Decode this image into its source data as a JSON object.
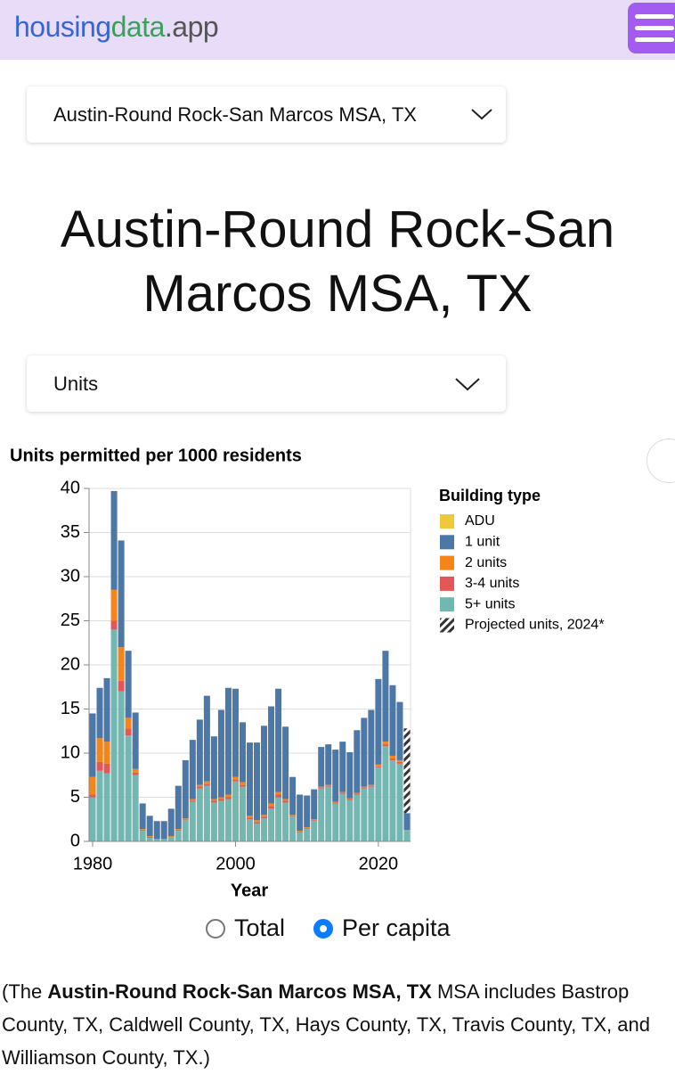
{
  "header": {
    "brand": [
      "housing",
      "data",
      ".app"
    ]
  },
  "location_select": "Austin-Round Rock-San Marcos MSA, TX",
  "heading": "Austin-Round Rock-San Marcos MSA, TX",
  "metric_select": "Units",
  "chart_data": {
    "type": "bar",
    "stacked": true,
    "title": "Units permitted per 1000 residents",
    "x_label": "Year",
    "legend_title": "Building type",
    "x": [
      1980,
      1981,
      1982,
      1983,
      1984,
      1985,
      1986,
      1987,
      1988,
      1989,
      1990,
      1991,
      1992,
      1993,
      1994,
      1995,
      1996,
      1997,
      1998,
      1999,
      2000,
      2001,
      2002,
      2003,
      2004,
      2005,
      2006,
      2007,
      2008,
      2009,
      2010,
      2011,
      2012,
      2013,
      2014,
      2015,
      2016,
      2017,
      2018,
      2019,
      2020,
      2021,
      2022,
      2023,
      2024
    ],
    "xlim": [
      1979.5,
      2024.5
    ],
    "xticks": [
      1980,
      2000,
      2020
    ],
    "ylim": [
      0,
      40
    ],
    "yticks": [
      0,
      5,
      10,
      15,
      20,
      25,
      30,
      35,
      40
    ],
    "grid": true,
    "series": [
      {
        "name": "ADU",
        "color": "#eeca3b",
        "values": [
          0,
          0,
          0,
          0,
          0,
          0,
          0,
          0,
          0,
          0,
          0,
          0,
          0,
          0,
          0,
          0,
          0,
          0,
          0,
          0,
          0,
          0,
          0,
          0,
          0,
          0,
          0,
          0,
          0,
          0,
          0,
          0,
          0,
          0,
          0,
          0,
          0,
          0,
          0,
          0,
          0,
          0,
          0,
          0,
          0
        ]
      },
      {
        "name": "1 unit",
        "color": "#4c78a8",
        "values": [
          7.2,
          5.7,
          7.2,
          11.2,
          12.1,
          7.6,
          6.4,
          2.9,
          2.3,
          2.0,
          2.0,
          3.1,
          4.9,
          6.6,
          6.7,
          7.4,
          9.7,
          7.1,
          9.9,
          12.1,
          10.0,
          6.8,
          8.3,
          8.8,
          10.1,
          11.0,
          11.7,
          8.2,
          4.3,
          4.1,
          3.6,
          3.4,
          4.5,
          4.6,
          5.9,
          5.7,
          5.2,
          7.1,
          7.8,
          8.5,
          9.7,
          10.3,
          8.0,
          6.6,
          1.9
        ]
      },
      {
        "name": "2 units",
        "color": "#f58518",
        "values": [
          2.0,
          2.7,
          2.5,
          3.5,
          3.8,
          1.2,
          0.4,
          0.1,
          0.1,
          0.1,
          0.1,
          0.1,
          0.1,
          0.1,
          0.2,
          0.2,
          0.3,
          0.2,
          0.2,
          0.3,
          0.3,
          0.3,
          0.2,
          0.2,
          0.2,
          0.3,
          0.3,
          0.2,
          0.1,
          0.1,
          0.1,
          0.1,
          0.1,
          0.1,
          0.1,
          0.1,
          0.1,
          0.1,
          0.1,
          0.1,
          0.2,
          0.3,
          0.3,
          0.2,
          0.05
        ]
      },
      {
        "name": "3-4 units",
        "color": "#e45756",
        "values": [
          0.3,
          1.0,
          1.1,
          1.0,
          1.2,
          0.8,
          0.3,
          0.1,
          0.1,
          0,
          0,
          0,
          0.1,
          0.1,
          0.1,
          0.2,
          0.2,
          0.2,
          0.2,
          0.2,
          0.2,
          0.2,
          0.2,
          0.2,
          0.2,
          0.3,
          0.3,
          0.2,
          0.1,
          0.1,
          0.1,
          0.1,
          0.1,
          0.1,
          0.1,
          0.1,
          0.1,
          0.1,
          0.1,
          0.1,
          0.1,
          0.2,
          0.2,
          0.2,
          0.05
        ]
      },
      {
        "name": "5+ units",
        "color": "#72b7b2",
        "values": [
          5.0,
          8.0,
          7.7,
          24.0,
          17.0,
          12.0,
          7.5,
          1.2,
          0.4,
          0.2,
          0.2,
          0.5,
          1.2,
          2.4,
          4.5,
          6.0,
          6.3,
          4.4,
          4.6,
          4.8,
          6.8,
          6.2,
          2.5,
          2.0,
          2.6,
          3.7,
          5.0,
          4.4,
          2.8,
          1.0,
          1.4,
          2.3,
          6.0,
          6.2,
          4.3,
          5.4,
          4.7,
          5.3,
          6.0,
          6.2,
          8.4,
          10.8,
          9.2,
          8.8,
          1.2
        ]
      },
      {
        "name": "Projected units, 2024*",
        "color": "#333333",
        "hatched": true,
        "values": [
          null,
          null,
          null,
          null,
          null,
          null,
          null,
          null,
          null,
          null,
          null,
          null,
          null,
          null,
          null,
          null,
          null,
          null,
          null,
          null,
          null,
          null,
          null,
          null,
          null,
          null,
          null,
          null,
          null,
          null,
          null,
          null,
          null,
          null,
          null,
          null,
          null,
          null,
          null,
          null,
          null,
          null,
          null,
          null,
          9.6
        ]
      }
    ]
  },
  "mode_options": [
    {
      "label": "Total"
    },
    {
      "label": "Per capita",
      "selected": true
    }
  ],
  "footnote": {
    "before": "(The ",
    "bold": "Austin-Round Rock-San Marcos MSA, TX",
    "after": " MSA includes Bastrop County, TX, Caldwell County, TX, Hays County, TX, Travis County, TX, and Williamson County, TX.)"
  }
}
